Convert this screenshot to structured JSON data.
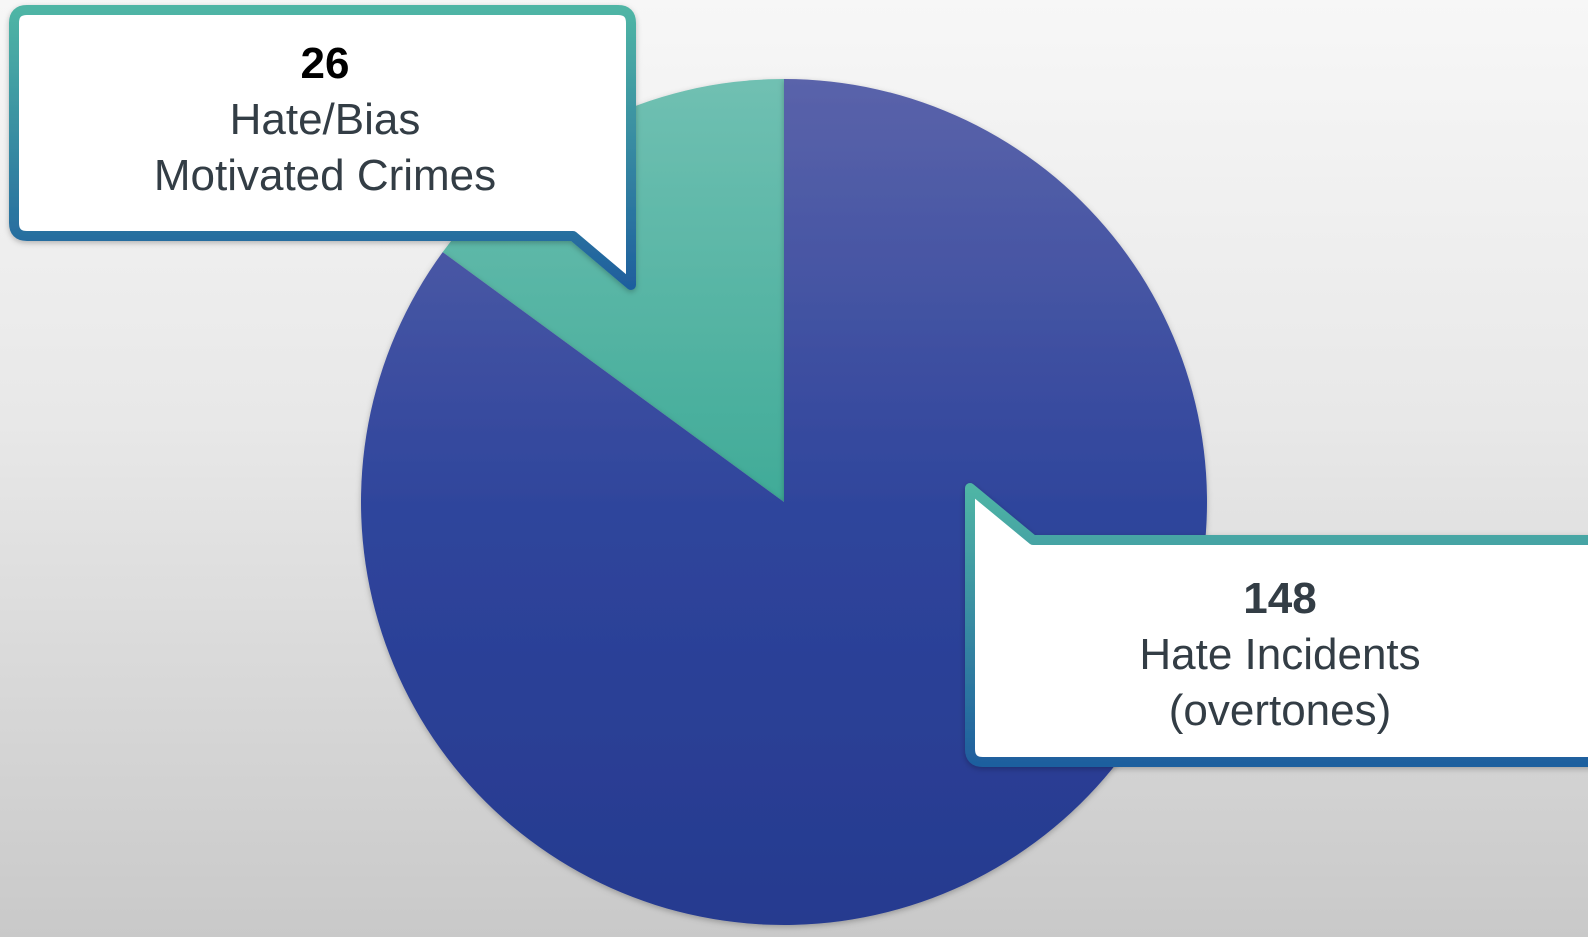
{
  "chart_data": {
    "type": "pie",
    "slices": [
      {
        "label": "Hate/Bias\nMotivated Crimes",
        "label_lines": [
          "Hate/Bias",
          "Motivated Crimes"
        ],
        "value": 26,
        "value_text": "26",
        "color": "#4fb5a5"
      },
      {
        "label": "Hate Incidents\n(overtones)",
        "label_lines": [
          "Hate Incidents",
          "(overtones)"
        ],
        "value": 148,
        "value_text": "148",
        "color": "#2f4a9e"
      }
    ],
    "legend": "none",
    "data_labels": "callouts"
  },
  "colors": {
    "teal": "#4fb5a5",
    "blue": "#2f4a9e",
    "callout_border_top": "#4fb5a5",
    "callout_border_bottom": "#1f5f9e"
  }
}
